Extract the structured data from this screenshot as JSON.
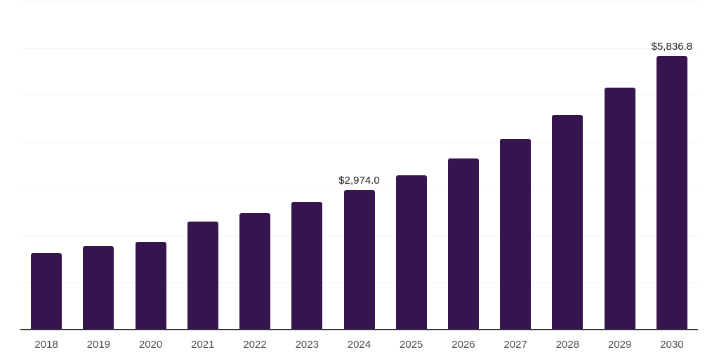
{
  "chart_data": {
    "type": "bar",
    "title": "",
    "xlabel": "",
    "ylabel": "",
    "categories": [
      "2018",
      "2019",
      "2020",
      "2021",
      "2022",
      "2023",
      "2024",
      "2025",
      "2026",
      "2027",
      "2028",
      "2029",
      "2030"
    ],
    "values": [
      1625,
      1770,
      1860,
      2300,
      2480,
      2715,
      2974.0,
      3280,
      3640,
      4060,
      4570,
      5150,
      5836.8
    ],
    "data_labels": {
      "2024": "$2,974.0",
      "2030": "$5,836.8"
    },
    "ylim": [
      0,
      7000
    ],
    "gridline_step": 1000,
    "grid": "horizontal",
    "legend_position": "none",
    "y_axis_labels_visible": false,
    "colors": {
      "bar": "#36154e",
      "background": "#ffffff",
      "gridline": "#f2f2f2",
      "axis_line": "#34343e",
      "tick_label": "#4a4a4a",
      "data_label": "#1c1c1c"
    }
  }
}
